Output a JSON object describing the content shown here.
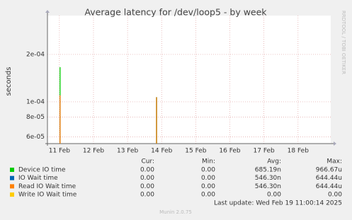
{
  "chart_data": {
    "type": "line",
    "title": "Average latency for /dev/loop5 - by week",
    "y_label": "seconds",
    "side_text": "RRDTOOL / TOBI OETIKER",
    "log_y": true,
    "grid": true,
    "xlim": [
      11.15,
      19.46
    ],
    "xticks": [
      {
        "value": 11.5,
        "label": "11 Feb"
      },
      {
        "value": 12.5,
        "label": "12 Feb"
      },
      {
        "value": 13.5,
        "label": "13 Feb"
      },
      {
        "value": 14.5,
        "label": "14 Feb"
      },
      {
        "value": 15.5,
        "label": "15 Feb"
      },
      {
        "value": 16.5,
        "label": "16 Feb"
      },
      {
        "value": 17.5,
        "label": "17 Feb"
      },
      {
        "value": 18.5,
        "label": "18 Feb"
      }
    ],
    "ylim": [
      5.43e-05,
      0.000353
    ],
    "yticks": [
      {
        "value": 6e-05,
        "label": "6e-05"
      },
      {
        "value": 8e-05,
        "label": "8e-05"
      },
      {
        "value": 0.0001,
        "label": "1e-04"
      },
      {
        "value": 0.0002,
        "label": "2e-04"
      }
    ],
    "legend_headers": [
      "Cur:",
      "Min:",
      "Avg:",
      "Max:"
    ],
    "series": [
      {
        "name": "Device IO time",
        "color": "#00cc00",
        "x": [
          11.52,
          14.35
        ],
        "values": [
          0.000166,
          0.000107
        ],
        "cur": "0.00",
        "min": "0.00",
        "avg": "685.19n",
        "max": "966.67u"
      },
      {
        "name": "IO Wait time",
        "color": "#0066b3",
        "x": [
          11.52,
          14.35
        ],
        "values": [
          0.00011,
          0.000107
        ],
        "cur": "0.00",
        "min": "0.00",
        "avg": "546.30n",
        "max": "644.44u"
      },
      {
        "name": "Read IO Wait time",
        "color": "#ff8000",
        "x": [
          11.52,
          14.35
        ],
        "values": [
          0.00011,
          0.000107
        ],
        "cur": "0.00",
        "min": "0.00",
        "avg": "546.30n",
        "max": "644.44u"
      },
      {
        "name": "Write IO Wait time",
        "color": "#ffcc00",
        "x": [],
        "values": [],
        "cur": "0.00",
        "min": "0.00",
        "avg": "0.00",
        "max": "0.00"
      }
    ],
    "last_update": "Last update: Wed Feb 19 11:00:14 2025",
    "footer": "Munin 2.0.75"
  }
}
